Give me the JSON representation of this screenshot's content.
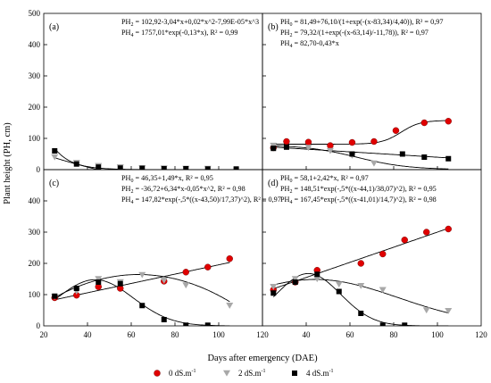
{
  "chart_data": {
    "type": "scatter",
    "xlabel": "Days after emergency (DAE)",
    "ylabel": "Plant height (PH, cm)",
    "xlim": [
      20,
      120
    ],
    "ylim": [
      0,
      500
    ],
    "x_ticks": [
      "20",
      "40",
      "60",
      "80",
      "100",
      "120"
    ],
    "y_ticks": [
      "0",
      "100",
      "200",
      "300",
      "400",
      "500"
    ],
    "series_style": {
      "PH0": {
        "color": "#e00000",
        "marker": "circle"
      },
      "PH2": {
        "color": "#a8a8a8",
        "marker": "triangle-down"
      },
      "PH4": {
        "color": "#000000",
        "marker": "square"
      }
    },
    "legend": [
      "0 dS.m",
      "2 dS.m",
      "4 dS.m"
    ],
    "legend_sup": "-1",
    "panels": [
      {
        "label": "(a)",
        "equations": [
          {
            "lhs": "PH",
            "sub": "2",
            "rhs": " =   102,92-3,04*x+0,02*x^2-7,99E-05*x^3"
          },
          {
            "lhs": "PH",
            "sub": "4",
            "rhs": " =   1757,01*exp(-0,13*x), R² = 0,99"
          }
        ],
        "series": [
          {
            "name": "PH2",
            "points": [
              [
                25,
                40
              ],
              [
                35,
                22
              ],
              [
                45,
                12
              ],
              [
                55,
                8
              ],
              [
                65,
                5
              ],
              [
                75,
                4
              ],
              [
                85,
                3
              ],
              [
                95,
                3
              ]
            ]
          },
          {
            "name": "PH4",
            "points": [
              [
                25,
                60
              ],
              [
                35,
                18
              ],
              [
                45,
                8
              ],
              [
                55,
                5
              ],
              [
                65,
                4
              ],
              [
                75,
                3
              ],
              [
                85,
                3
              ],
              [
                95,
                2
              ],
              [
                108,
                2
              ]
            ]
          }
        ]
      },
      {
        "label": "(b)",
        "equations": [
          {
            "lhs": "PH",
            "sub": "0",
            "rhs": " =   81,49+76,10/(1+exp(-(x-83,34)/4,40)), R² = 0,97"
          },
          {
            "lhs": "PH",
            "sub": "2",
            "rhs": " =   79,32/(1+exp(-(x-63,14)/-11,78)), R² = 0,97"
          },
          {
            "lhs": "PH",
            "sub": "4",
            "rhs": " =   82,70-0,43*x"
          }
        ],
        "series": [
          {
            "name": "PH0",
            "points": [
              [
                25,
                70
              ],
              [
                31,
                90
              ],
              [
                41,
                88
              ],
              [
                51,
                77
              ],
              [
                61,
                87
              ],
              [
                71,
                90
              ],
              [
                81,
                125
              ],
              [
                94,
                150
              ],
              [
                105,
                155
              ]
            ]
          },
          {
            "name": "PH2",
            "points": [
              [
                25,
                77
              ],
              [
                41,
                70
              ],
              [
                51,
                60
              ],
              [
                61,
                45
              ],
              [
                71,
                20
              ]
            ]
          },
          {
            "name": "PH4",
            "points": [
              [
                25,
                68
              ],
              [
                31,
                72
              ],
              [
                61,
                50
              ],
              [
                84,
                50
              ],
              [
                94,
                40
              ],
              [
                105,
                35
              ]
            ]
          }
        ]
      },
      {
        "label": "(c)",
        "equations": [
          {
            "lhs": "PH",
            "sub": "0",
            "rhs": " =   46,35+1,49*x, R² = 0,95"
          },
          {
            "lhs": "PH",
            "sub": "2",
            "rhs": " =   -36,72+6,34*x-0,05*x^2, R² = 0,98"
          },
          {
            "lhs": "PH",
            "sub": "4",
            "rhs": " =   147,82*exp(-,5*((x-43,50)/17,37)^2), R² = 0,97"
          }
        ],
        "series": [
          {
            "name": "PH0",
            "points": [
              [
                25,
                90
              ],
              [
                35,
                98
              ],
              [
                45,
                125
              ],
              [
                55,
                120
              ],
              [
                75,
                143
              ],
              [
                85,
                172
              ],
              [
                95,
                188
              ],
              [
                105,
                215
              ]
            ]
          },
          {
            "name": "PH2",
            "points": [
              [
                25,
                93
              ],
              [
                35,
                110
              ],
              [
                45,
                150
              ],
              [
                55,
                140
              ],
              [
                65,
                163
              ],
              [
                75,
                145
              ],
              [
                85,
                130
              ],
              [
                105,
                65
              ]
            ]
          },
          {
            "name": "PH4",
            "points": [
              [
                25,
                95
              ],
              [
                35,
                120
              ],
              [
                45,
                140
              ],
              [
                55,
                135
              ],
              [
                65,
                65
              ],
              [
                75,
                20
              ],
              [
                85,
                2
              ],
              [
                95,
                2
              ]
            ]
          }
        ]
      },
      {
        "label": "(d)",
        "equations": [
          {
            "lhs": "PH",
            "sub": "0",
            "rhs": " =   58,1+2,42*x, R² = 0,97"
          },
          {
            "lhs": "PH",
            "sub": "2",
            "rhs": " =   148,51*exp(-,5*((x-44,1)/38,07)^2), R² = 0,95"
          },
          {
            "lhs": "PH",
            "sub": "4",
            "rhs": " =   167,45*exp(-,5*((x-41,01)/14,7)^2), R² = 0,98"
          }
        ],
        "series": [
          {
            "name": "PH0",
            "points": [
              [
                25,
                115
              ],
              [
                35,
                140
              ],
              [
                45,
                178
              ],
              [
                65,
                200
              ],
              [
                75,
                230
              ],
              [
                85,
                275
              ],
              [
                95,
                300
              ],
              [
                105,
                310
              ]
            ]
          },
          {
            "name": "PH2",
            "points": [
              [
                25,
                125
              ],
              [
                35,
                150
              ],
              [
                45,
                150
              ],
              [
                55,
                133
              ],
              [
                65,
                128
              ],
              [
                75,
                115
              ],
              [
                95,
                50
              ],
              [
                105,
                48
              ]
            ]
          },
          {
            "name": "PH4",
            "points": [
              [
                25,
                105
              ],
              [
                35,
                140
              ],
              [
                45,
                165
              ],
              [
                55,
                110
              ],
              [
                65,
                40
              ],
              [
                75,
                2
              ],
              [
                85,
                2
              ]
            ]
          }
        ]
      }
    ]
  }
}
